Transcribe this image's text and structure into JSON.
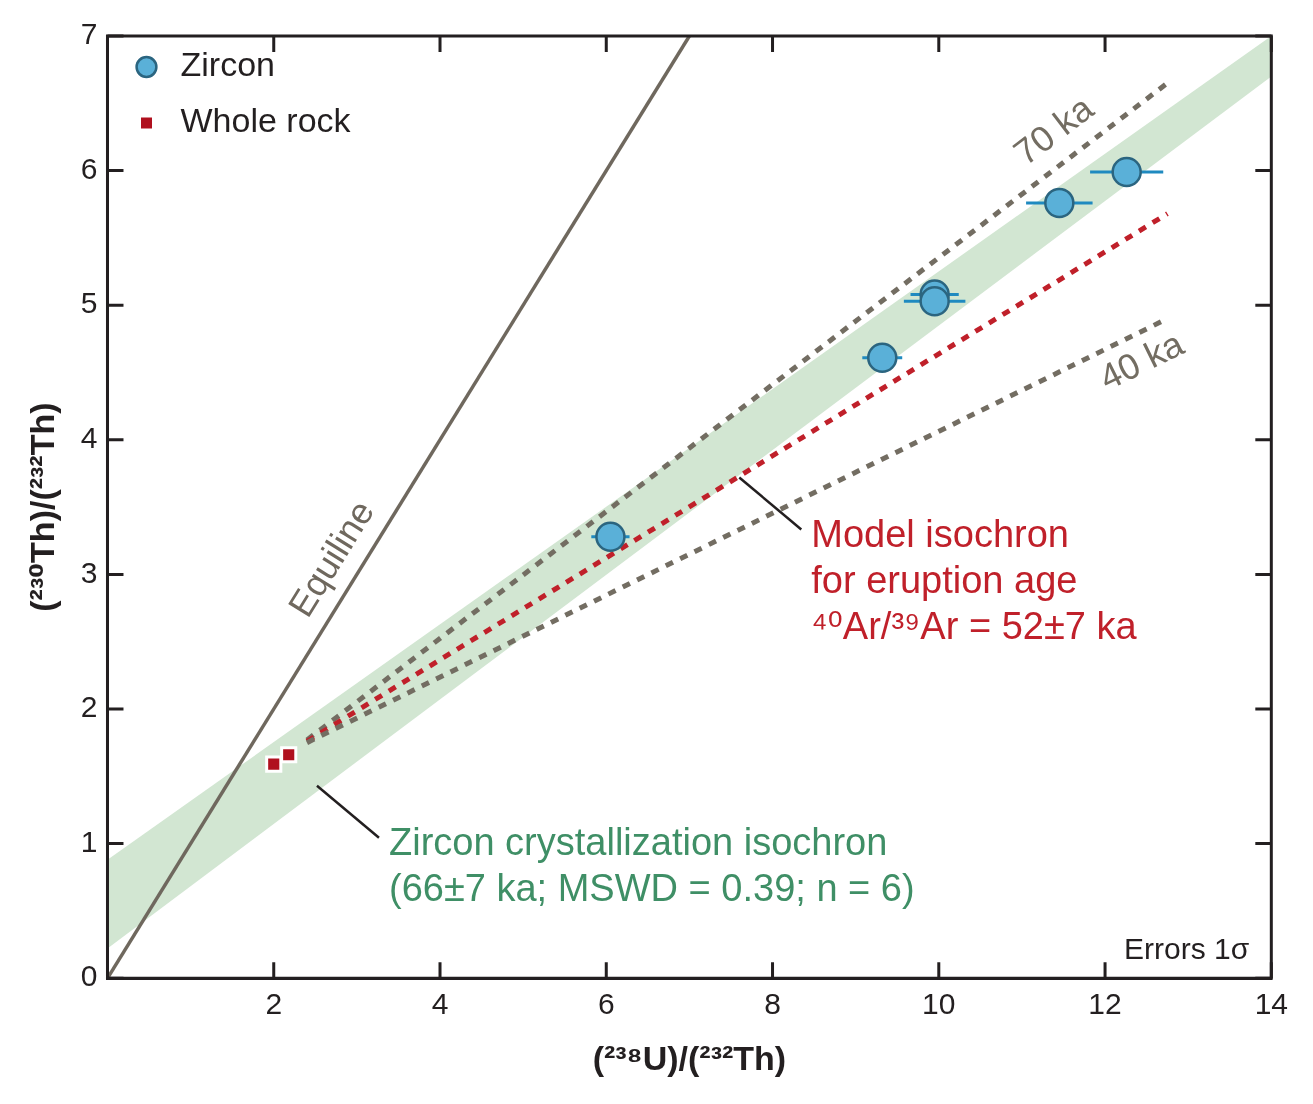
{
  "chart_data": {
    "type": "scatter",
    "xlabel": "(²³⁸U)/(²³²Th)",
    "ylabel": "(²³⁰Th)/(²³²Th)",
    "xlim": [
      0,
      14
    ],
    "xticks": [
      2,
      4,
      6,
      8,
      10,
      12,
      14
    ],
    "ylim": [
      0,
      7
    ],
    "yticks": [
      0,
      1,
      2,
      3,
      4,
      5,
      6,
      7
    ],
    "grid": false,
    "legend": "top left",
    "series": [
      {
        "type": "area",
        "color": "#d2e6d2",
        "x": [
          0,
          14
        ],
        "values": [
          null,
          null
        ],
        "lower": [
          0.22,
          6.7
        ],
        "upper": [
          0.88,
          7.0
        ]
      },
      {
        "type": "line",
        "color": "#6f685e",
        "line_style": "solid",
        "marker": "none",
        "x": [
          0,
          7
        ],
        "values": [
          0,
          7
        ]
      },
      {
        "type": "line",
        "color": "#736d62",
        "line_style": "dotted",
        "marker": "none",
        "x": [
          2.4,
          12.75
        ],
        "values": [
          1.77,
          6.65
        ]
      },
      {
        "type": "line",
        "color": "#c0202a",
        "line_style": "dotted",
        "marker": "none",
        "x": [
          2.4,
          12.75
        ],
        "values": [
          1.76,
          5.68
        ]
      },
      {
        "type": "line",
        "color": "#736d62",
        "line_style": "dotted",
        "marker": "none",
        "x": [
          2.4,
          12.75
        ],
        "values": [
          1.75,
          4.9
        ]
      },
      {
        "name": "Zircon",
        "type": "scatter",
        "color": "#5ab0d8",
        "marker": "circle",
        "x": [
          6.05,
          9.32,
          9.95,
          9.95,
          11.45,
          12.26
        ],
        "values": [
          3.28,
          4.61,
          5.08,
          5.03,
          5.76,
          5.99
        ],
        "xerrors": [
          0.23,
          0.24,
          0.29,
          0.37,
          0.4,
          0.44
        ]
      },
      {
        "name": "Whole rock",
        "type": "scatter",
        "color": "#b0101e",
        "marker": "square",
        "x": [
          2.0,
          2.18
        ],
        "values": [
          1.59,
          1.66
        ]
      }
    ],
    "annotations": [
      {
        "text": "Equiline",
        "x": 3.0,
        "y": 3.0
      },
      {
        "text": "70 ka",
        "x": 11.6,
        "y": 6.12
      },
      {
        "text": "40 ka",
        "x": 12.3,
        "y": 4.76
      },
      {
        "text": "Model isochron\nfor eruption age\n⁴⁰Ar/³⁹Ar = 52±7 ka",
        "x": 7.6,
        "y": 3.72
      },
      {
        "text": "Zircon crystallization isochron\n(66±7 ka; MSWD = 0.39; n = 6)",
        "x": 2.52,
        "y": 1.43
      },
      "Errors 1σ"
    ]
  }
}
